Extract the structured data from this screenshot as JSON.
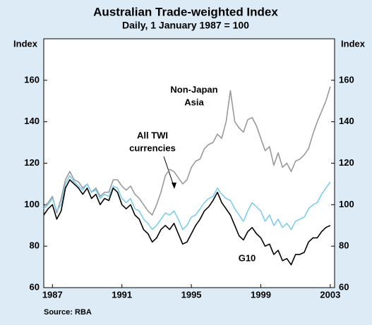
{
  "chart_data": {
    "type": "line",
    "title": "Australian Trade-weighted Index",
    "subtitle": "Daily, 1 January 1987 = 100",
    "y_label": "Index",
    "y2_label": "Index",
    "source": "Source: RBA",
    "x": [
      1987,
      1987.25,
      1987.5,
      1987.75,
      1988,
      1988.25,
      1988.5,
      1988.75,
      1989,
      1989.25,
      1989.5,
      1989.75,
      1990,
      1990.25,
      1990.5,
      1990.75,
      1991,
      1991.25,
      1991.5,
      1991.75,
      1992,
      1992.25,
      1992.5,
      1992.75,
      1993,
      1993.25,
      1993.5,
      1993.75,
      1994,
      1994.25,
      1994.5,
      1994.75,
      1995,
      1995.25,
      1995.5,
      1995.75,
      1996,
      1996.25,
      1996.5,
      1996.75,
      1997,
      1997.25,
      1997.5,
      1997.75,
      1998,
      1998.25,
      1998.5,
      1998.75,
      1999,
      1999.25,
      1999.5,
      1999.75,
      2000,
      2000.25,
      2000.5,
      2000.75,
      2001,
      2001.25,
      2001.5,
      2001.75,
      2002,
      2002.25,
      2002.5,
      2002.75,
      2003,
      2003.25,
      2003.5
    ],
    "series": [
      {
        "name": "Non-Japan Asia",
        "color": "#999999",
        "values": [
          99,
          101,
          104,
          96,
          103,
          112,
          116,
          112,
          111,
          108,
          110,
          106,
          108,
          104,
          106,
          106,
          112,
          112,
          109,
          107,
          109,
          105,
          103,
          100,
          97,
          95,
          100,
          106,
          114,
          117,
          116,
          113,
          110,
          112,
          118,
          121,
          122,
          127,
          129,
          130,
          134,
          132,
          140,
          155,
          140,
          137,
          135,
          141,
          142,
          138,
          132,
          126,
          128,
          119,
          125,
          118,
          120,
          116,
          121,
          122,
          124,
          127,
          134,
          140,
          145,
          150,
          157
        ]
      },
      {
        "name": "All TWI currencies",
        "color": "#7ccdee",
        "values": [
          98,
          100,
          103,
          97,
          100,
          110,
          114,
          111,
          109,
          107,
          110,
          106,
          107,
          103,
          105,
          104,
          109,
          108,
          103,
          101,
          103,
          98,
          97,
          93,
          91,
          88,
          90,
          93,
          96,
          95,
          97,
          93,
          88,
          90,
          94,
          95,
          98,
          101,
          103,
          104,
          108,
          105,
          103,
          102,
          98,
          95,
          92,
          97,
          101,
          99,
          97,
          92,
          95,
          90,
          93,
          89,
          91,
          88,
          92,
          93,
          94,
          98,
          100,
          101,
          105,
          108,
          111
        ]
      },
      {
        "name": "G10",
        "color": "#000000",
        "values": [
          95,
          98,
          100,
          93,
          97,
          108,
          112,
          110,
          108,
          105,
          108,
          103,
          105,
          100,
          103,
          102,
          108,
          106,
          100,
          98,
          100,
          95,
          93,
          88,
          86,
          82,
          84,
          88,
          90,
          88,
          91,
          86,
          81,
          82,
          86,
          90,
          93,
          97,
          99,
          102,
          106,
          101,
          98,
          95,
          90,
          85,
          83,
          87,
          89,
          86,
          84,
          80,
          81,
          76,
          78,
          73,
          74,
          71,
          76,
          76,
          77,
          82,
          84,
          84,
          87,
          89,
          90
        ]
      }
    ],
    "annotations": [
      [
        "Non-Japan",
        "Asia"
      ],
      [
        "All TWI",
        "currencies"
      ],
      [
        "G10"
      ]
    ],
    "xlim": [
      1987,
      2003.75
    ],
    "xticks": [
      {
        "value": 1987.5,
        "label": "1987"
      },
      {
        "value": 1991.5,
        "label": "1991"
      },
      {
        "value": 1995.5,
        "label": "1995"
      },
      {
        "value": 1999.5,
        "label": "1999"
      },
      {
        "value": 2003.5,
        "label": "2003"
      }
    ],
    "ylim": [
      60,
      180
    ],
    "yticks": [
      60,
      80,
      100,
      120,
      140,
      160
    ],
    "y2lim": [
      60,
      180
    ],
    "y2ticks": [
      60,
      80,
      100,
      120,
      140,
      160
    ],
    "grid": false
  }
}
